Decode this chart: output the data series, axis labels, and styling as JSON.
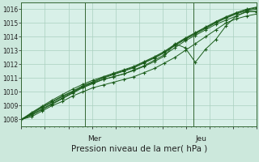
{
  "title": "Pression niveau de la mer( hPa )",
  "bg_color": "#cce8dc",
  "plot_bg_color": "#d8f0e8",
  "grid_color": "#aacfbf",
  "line_color": "#1a5c1a",
  "axis_color": "#336633",
  "ylim": [
    1007.5,
    1016.5
  ],
  "xlim": [
    0,
    100
  ],
  "yticks": [
    1008,
    1009,
    1010,
    1011,
    1012,
    1013,
    1014,
    1015,
    1016
  ],
  "vline_positions": [
    27,
    73
  ],
  "vline_labels": [
    "Mer",
    "Jeu"
  ],
  "series": [
    [
      1008.0,
      1008.2,
      1008.6,
      1009.0,
      1009.3,
      1009.7,
      1010.0,
      1010.3,
      1010.5,
      1010.7,
      1010.9,
      1011.1,
      1011.4,
      1011.7,
      1012.1,
      1012.5,
      1013.0,
      1013.5,
      1014.0,
      1014.5,
      1015.0,
      1015.3,
      1015.5,
      1015.65
    ],
    [
      1008.0,
      1008.3,
      1008.7,
      1009.1,
      1009.5,
      1009.9,
      1010.3,
      1010.6,
      1010.9,
      1011.1,
      1011.3,
      1011.6,
      1011.9,
      1012.3,
      1012.7,
      1013.2,
      1013.7,
      1014.1,
      1014.5,
      1014.9,
      1015.2,
      1015.5,
      1015.8,
      1015.85
    ],
    [
      1008.0,
      1008.35,
      1008.75,
      1009.15,
      1009.55,
      1009.95,
      1010.35,
      1010.65,
      1010.9,
      1011.1,
      1011.3,
      1011.55,
      1011.85,
      1012.2,
      1012.6,
      1013.5,
      1013.2,
      1012.15,
      1013.1,
      1013.8,
      1014.8,
      1015.5,
      1015.85,
      1015.8
    ],
    [
      1008.0,
      1008.4,
      1008.85,
      1009.25,
      1009.65,
      1010.0,
      1010.4,
      1010.7,
      1011.0,
      1011.25,
      1011.5,
      1011.75,
      1012.1,
      1012.45,
      1012.85,
      1013.35,
      1013.8,
      1014.2,
      1014.6,
      1015.0,
      1015.35,
      1015.65,
      1015.9,
      1016.0
    ],
    [
      1008.0,
      1008.45,
      1008.9,
      1009.3,
      1009.7,
      1010.05,
      1010.45,
      1010.75,
      1011.05,
      1011.3,
      1011.55,
      1011.8,
      1012.15,
      1012.5,
      1012.9,
      1013.4,
      1013.85,
      1014.25,
      1014.65,
      1015.05,
      1015.4,
      1015.7,
      1015.95,
      1016.1
    ],
    [
      1008.0,
      1008.5,
      1008.95,
      1009.4,
      1009.8,
      1010.2,
      1010.55,
      1010.85,
      1011.1,
      1011.35,
      1011.6,
      1011.85,
      1012.2,
      1012.55,
      1012.95,
      1013.45,
      1013.9,
      1014.3,
      1014.7,
      1015.1,
      1015.45,
      1015.75,
      1016.0,
      1016.15
    ]
  ]
}
